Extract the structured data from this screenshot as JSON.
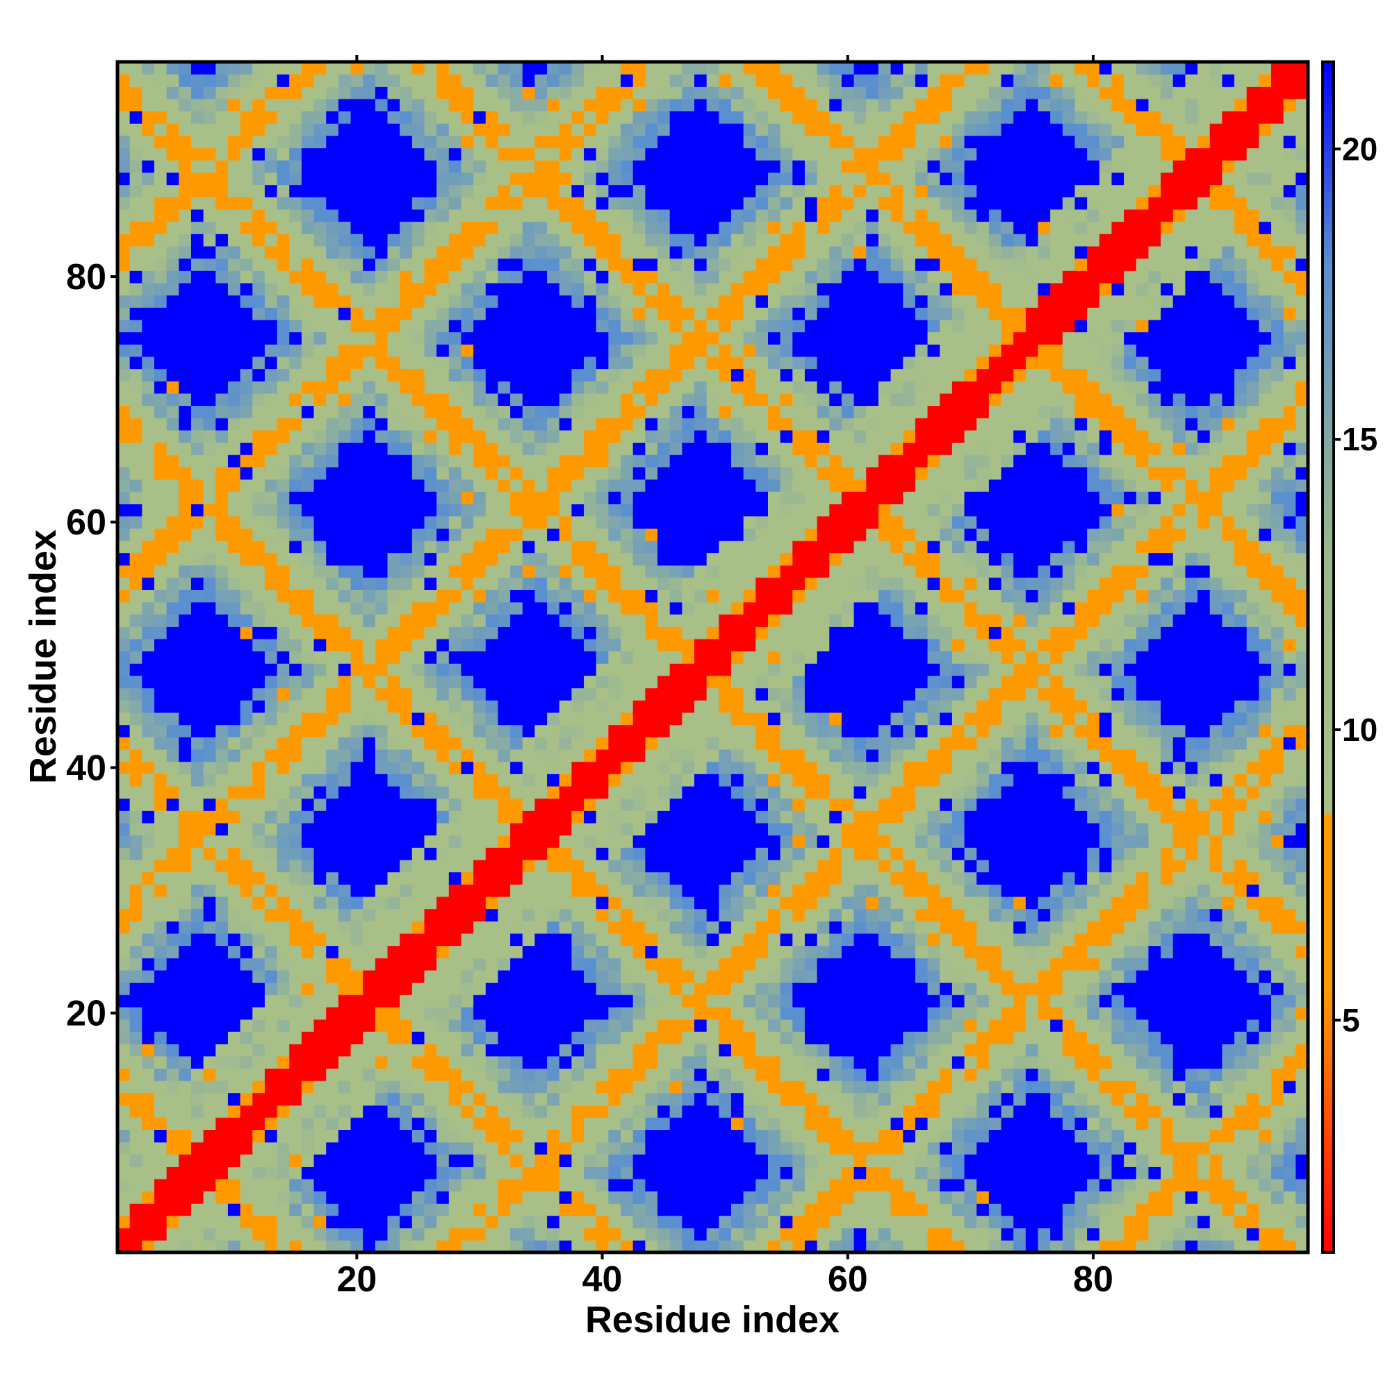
{
  "chart_data": {
    "type": "heatmap",
    "title": "",
    "xlabel": "Residue index",
    "ylabel": "Residue index",
    "xlim": [
      1,
      97
    ],
    "ylim": [
      1,
      97
    ],
    "n_residues": 97,
    "x_ticks": [
      "20",
      "40",
      "60",
      "80"
    ],
    "y_ticks": [
      "20",
      "40",
      "60",
      "80"
    ],
    "colorbar": {
      "range": [
        1,
        21.5
      ],
      "ticks": [
        "5",
        "10",
        "15",
        "20"
      ],
      "stops": [
        {
          "value": 1,
          "color": "#ff0000"
        },
        {
          "value": 5.5,
          "color": "#ff9900"
        },
        {
          "value": 8.5,
          "color": "#ff9900"
        },
        {
          "value": 8.6,
          "color": "#a8c088"
        },
        {
          "value": 13,
          "color": "#9cb78a"
        },
        {
          "value": 18,
          "color": "#5a8fd0"
        },
        {
          "value": 21.5,
          "color": "#0000ff"
        }
      ]
    },
    "color_classes": {
      "contact": "#ff0000",
      "near": "#ff9900",
      "mid": "#a8c088",
      "far": "#5a8fd0",
      "none": "#0000ff"
    },
    "pattern": {
      "description_values": "symmetric residue distance map with strong main diagonal and periodic anti-diagonal contact bands",
      "diagonal_value": 1,
      "blue_value": 21.5,
      "period": 27
    },
    "grid": false,
    "legend": "colorbar-right"
  }
}
